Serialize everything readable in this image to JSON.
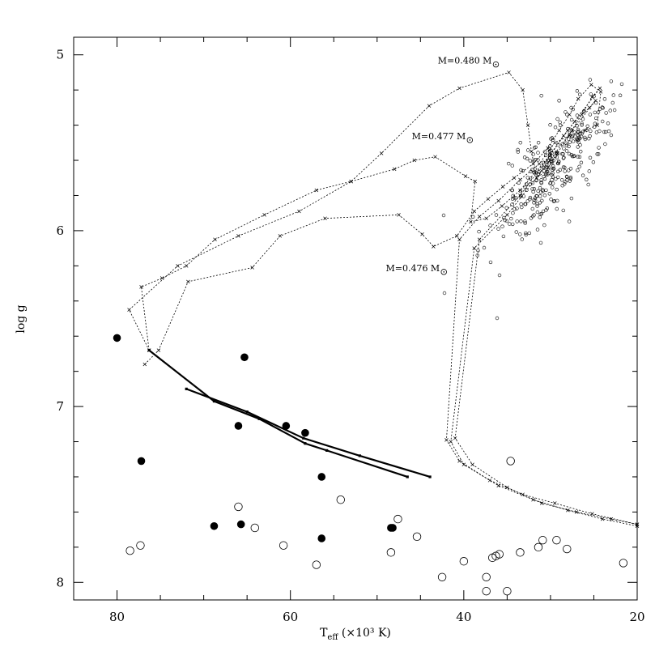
{
  "chart_data": {
    "type": "scatter",
    "title": "",
    "xlabel": "T_eff (×10³ K)",
    "xlabel_main": "T",
    "xlabel_sub": "eff",
    "xlabel_rest": " (×10³ K)",
    "ylabel": "log g",
    "xlim": [
      85,
      20
    ],
    "ylim": [
      4.9,
      8.1
    ],
    "y_inverted": true,
    "x_ticks": [
      80,
      60,
      40,
      20
    ],
    "y_ticks": [
      5,
      6,
      7,
      8
    ],
    "grid": false,
    "annotations": [
      {
        "text": "M=0.480 M",
        "x": 43,
        "y": 5.05
      },
      {
        "text": "M=0.477 M",
        "x": 46,
        "y": 5.48
      },
      {
        "text": "M=0.476 M",
        "x": 49,
        "y": 6.23
      }
    ],
    "series": [
      {
        "marker": "filled-circle",
        "x": [
          80.0,
          65.3,
          77.2,
          66.0,
          60.5,
          58.3,
          56.4,
          56.4,
          68.8,
          65.7,
          48.4,
          48.2
        ],
        "y": [
          6.61,
          6.72,
          7.31,
          7.11,
          7.11,
          7.15,
          7.4,
          7.75,
          7.68,
          7.67,
          7.69,
          7.69
        ]
      },
      {
        "marker": "open-circle",
        "x": [
          78.5,
          77.3,
          66.0,
          64.1,
          60.8,
          57.0,
          54.2,
          47.6,
          45.4,
          48.4,
          42.5,
          40.0,
          37.4,
          37.4,
          35.0,
          36.7,
          36.3,
          35.9,
          33.5,
          34.6,
          31.4,
          30.9,
          29.3,
          28.1,
          21.6
        ],
        "y": [
          7.82,
          7.79,
          7.57,
          7.69,
          7.79,
          7.9,
          7.53,
          7.64,
          7.74,
          7.83,
          7.97,
          7.88,
          7.97,
          8.05,
          8.05,
          7.86,
          7.85,
          7.84,
          7.83,
          7.31,
          7.8,
          7.76,
          7.76,
          7.81,
          7.89
        ]
      },
      {
        "marker": "thick-line",
        "x": [
          76.3,
          68.8,
          63.6,
          58.3,
          55.8,
          46.5
        ],
        "y": [
          6.68,
          6.97,
          7.07,
          7.21,
          7.25,
          7.4
        ]
      },
      {
        "marker": "thick-line",
        "x": [
          72.0,
          65.0,
          58.5,
          52.0,
          43.9
        ],
        "y": [
          6.9,
          7.03,
          7.18,
          7.28,
          7.4
        ]
      },
      {
        "marker": "dotted-track",
        "x": [
          76.8,
          75.2,
          71.8,
          64.4,
          61.2,
          56.0,
          47.5,
          44.8,
          43.5,
          40.8,
          38.8,
          37.2,
          35.5,
          34.2,
          32.0,
          30.3,
          29.0,
          27.8,
          26.8,
          25.3,
          24.2,
          24.6,
          26.0,
          27.8,
          29.5,
          31.3,
          33.5,
          36.0,
          38.2,
          40.5,
          42.0,
          40.5,
          37.0,
          33.2,
          29.5,
          25.2,
          20.0
        ],
        "y": [
          6.76,
          6.68,
          6.29,
          6.21,
          6.03,
          5.93,
          5.91,
          6.02,
          6.09,
          6.03,
          5.89,
          5.82,
          5.75,
          5.7,
          5.62,
          5.53,
          5.43,
          5.34,
          5.25,
          5.17,
          5.21,
          5.4,
          5.43,
          5.46,
          5.5,
          5.62,
          5.71,
          5.83,
          5.92,
          6.05,
          7.19,
          7.31,
          7.42,
          7.5,
          7.55,
          7.61,
          7.67
        ]
      },
      {
        "marker": "dotted-track",
        "x": [
          76.3,
          77.2,
          74.8,
          72.0,
          68.7,
          63.0,
          57.0,
          53.0,
          48.0,
          45.7,
          43.3,
          39.8,
          38.7,
          39.2,
          37.4,
          35.6,
          33.5,
          31.8,
          30.0,
          28.5,
          27.2,
          25.5,
          24.8,
          27.5,
          31.0,
          35.0,
          38.8,
          41.5,
          40.0,
          36.0,
          32.0,
          28.0,
          24.0,
          20.0
        ],
        "y": [
          6.68,
          6.32,
          6.27,
          6.2,
          6.05,
          5.91,
          5.77,
          5.72,
          5.65,
          5.6,
          5.58,
          5.69,
          5.72,
          5.95,
          5.93,
          5.86,
          5.77,
          5.67,
          5.57,
          5.46,
          5.38,
          5.3,
          5.26,
          5.43,
          5.66,
          5.91,
          6.1,
          7.2,
          7.33,
          7.45,
          7.53,
          7.59,
          7.64,
          7.68
        ]
      },
      {
        "marker": "dotted-track",
        "x": [
          76.3,
          78.6,
          73.0,
          66.0,
          59.0,
          53.0,
          49.5,
          44.0,
          40.5,
          34.8,
          33.2,
          32.6,
          32.2,
          31.6,
          30.5,
          29.2,
          27.8,
          26.4,
          25.2,
          24.3,
          28.0,
          33.5,
          38.2,
          41.0,
          39.0,
          35.0,
          31.0,
          27.0,
          23.0,
          20.0
        ],
        "y": [
          6.68,
          6.45,
          6.2,
          6.03,
          5.89,
          5.72,
          5.56,
          5.29,
          5.19,
          5.1,
          5.2,
          5.4,
          5.55,
          5.7,
          5.66,
          5.56,
          5.45,
          5.34,
          5.24,
          5.19,
          5.43,
          5.8,
          6.05,
          7.18,
          7.33,
          7.46,
          7.55,
          7.6,
          7.64,
          7.67
        ]
      }
    ]
  }
}
